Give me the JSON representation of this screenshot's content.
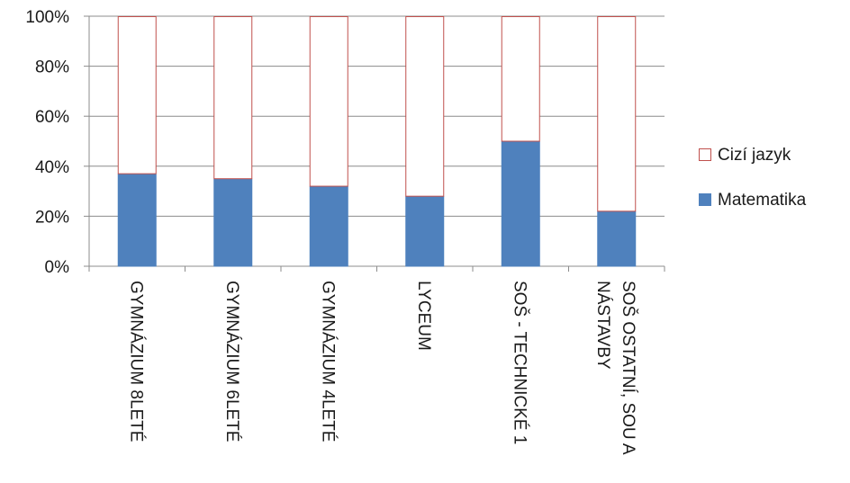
{
  "chart_data": {
    "type": "bar",
    "stacked": true,
    "percent": true,
    "categories": [
      [
        "GYMNÁZIUM 8LETÉ"
      ],
      [
        "GYMNÁZIUM 6LETÉ"
      ],
      [
        "GYMNÁZIUM 4LETÉ"
      ],
      [
        "LYCEUM"
      ],
      [
        "SOŠ - TECHNICKÉ 1"
      ],
      [
        "SOŠ OSTATNÍ, SOU A",
        "NÁSTAVBY"
      ]
    ],
    "series": [
      {
        "name": "Matematika",
        "values": [
          37,
          35,
          32,
          28,
          50,
          22
        ],
        "color": "#4f81bd"
      },
      {
        "name": "Cizí jazyk",
        "values": [
          63,
          65,
          68,
          72,
          50,
          78
        ],
        "color": "#ffffff",
        "stroke": "#c0504d"
      }
    ],
    "yticks": [
      "0%",
      "20%",
      "40%",
      "60%",
      "80%",
      "100%"
    ],
    "ylim": [
      0,
      100
    ],
    "grid": true,
    "legend_position": "right",
    "legend_order": [
      "Cizí jazyk",
      "Matematika"
    ]
  }
}
